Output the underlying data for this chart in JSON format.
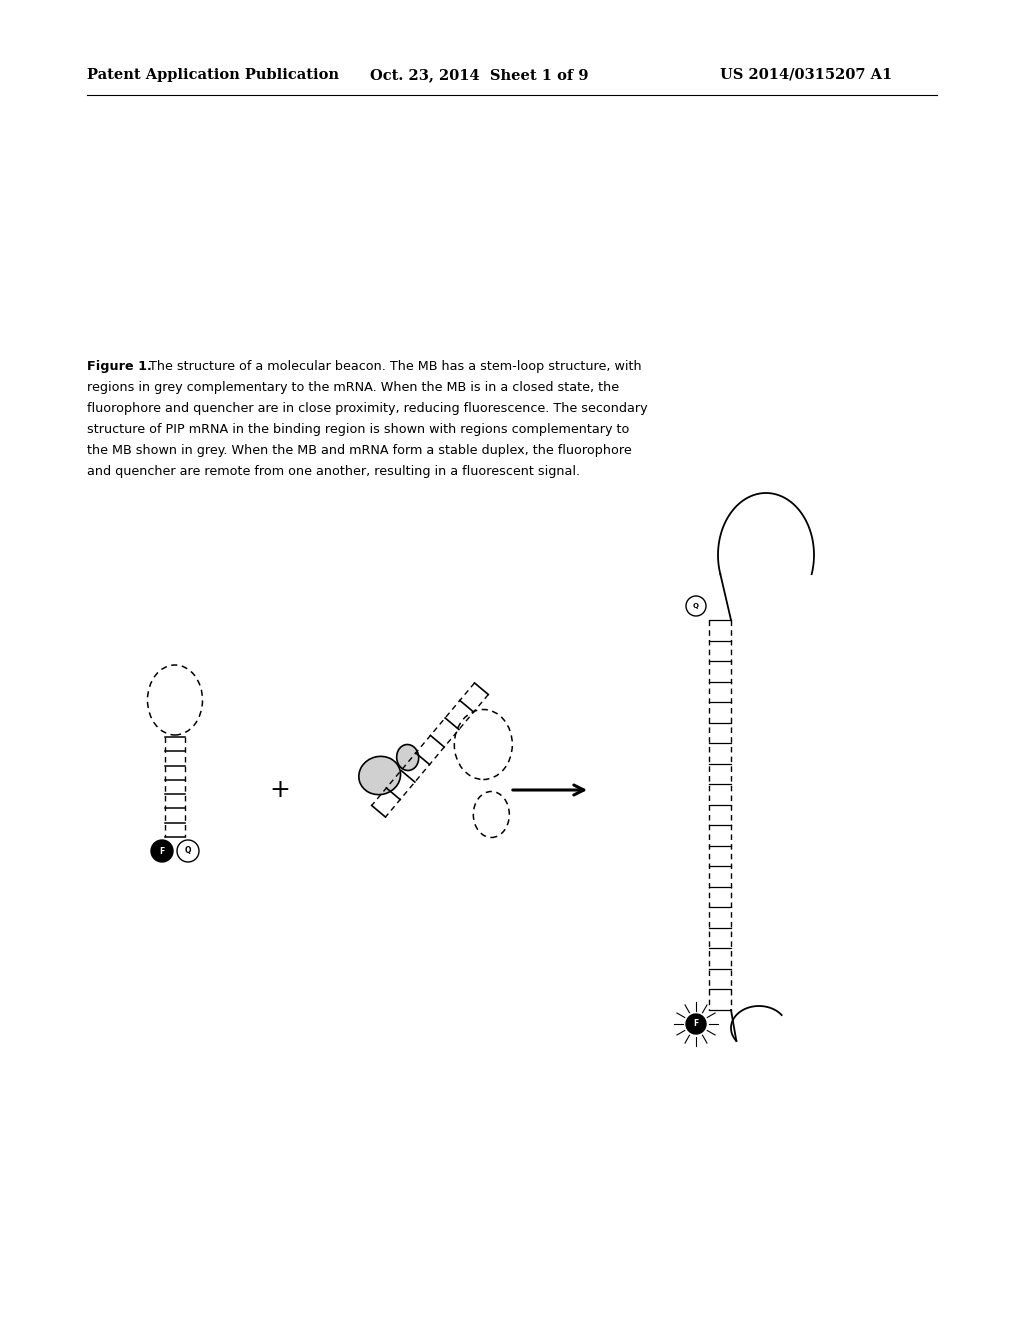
{
  "background_color": "#ffffff",
  "header_left": "Patent Application Publication",
  "header_mid": "Oct. 23, 2014  Sheet 1 of 9",
  "header_right": "US 2014/0315207 A1",
  "header_fontsize": 10.5,
  "caption_fontsize": 9.2,
  "plus_fontsize": 18
}
